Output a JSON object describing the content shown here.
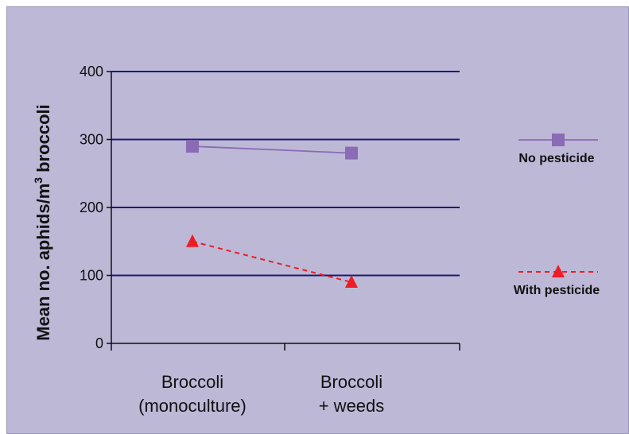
{
  "chart_data": {
    "type": "line",
    "categories": [
      "Broccoli\n(monoculture)",
      "Broccoli\n+ weeds"
    ],
    "series": [
      {
        "name": "No pesticide",
        "values": [
          290,
          280
        ],
        "color": "#8a6bb5",
        "marker": "square",
        "line": "solid"
      },
      {
        "name": "With pesticide",
        "values": [
          150,
          90
        ],
        "color": "#ee1c25",
        "marker": "triangle",
        "line": "dashed"
      }
    ],
    "ylabel_main": "Mean no. aphids/m",
    "ylabel_sup": "3",
    "ylabel_tail": " broccoli",
    "ylim": [
      0,
      400
    ],
    "yticks": [
      0,
      100,
      200,
      300,
      400
    ],
    "grid": true,
    "legend_position": "right",
    "colors": {
      "background": "#bcb8d6",
      "gridline": "#1c1d6e"
    }
  }
}
